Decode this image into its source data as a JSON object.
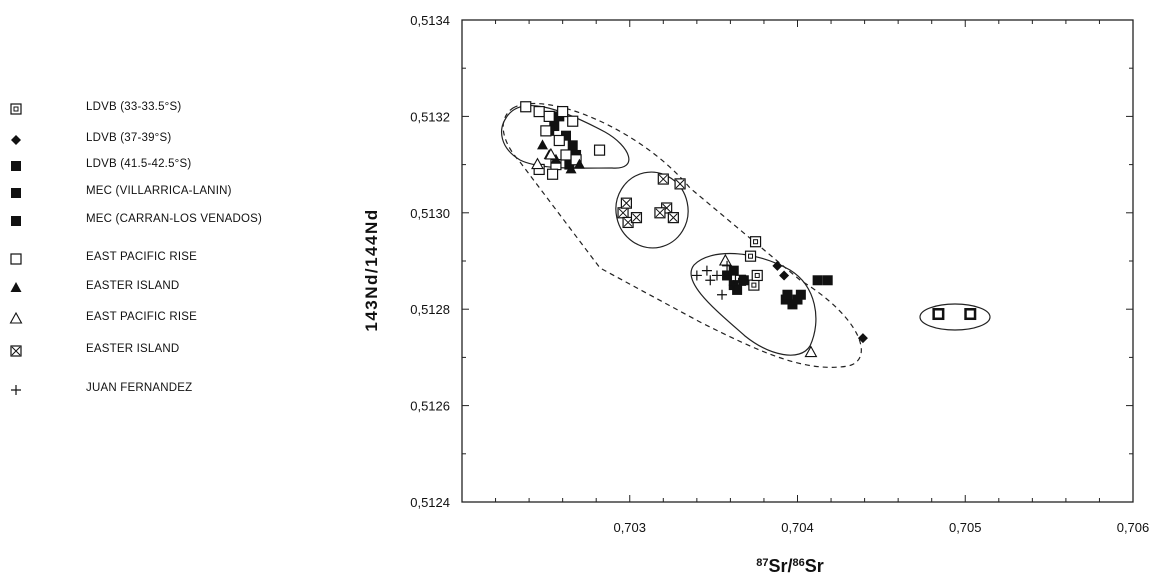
{
  "chart_data": {
    "type": "scatter",
    "title": "",
    "xlabel": "87Sr/86Sr",
    "ylabel": "143Nd/144Nd",
    "xlim": [
      0.702,
      0.706
    ],
    "ylim": [
      0.5124,
      0.5134
    ],
    "x_ticks": [
      {
        "value": 0.703,
        "label": "0,703"
      },
      {
        "value": 0.704,
        "label": "0,704"
      },
      {
        "value": 0.705,
        "label": "0,705"
      },
      {
        "value": 0.706,
        "label": "0,706"
      }
    ],
    "y_ticks": [
      {
        "value": 0.5124,
        "label": "0,5124"
      },
      {
        "value": 0.5126,
        "label": "0,5126"
      },
      {
        "value": 0.5128,
        "label": "0,5128"
      },
      {
        "value": 0.513,
        "label": "0,5130"
      },
      {
        "value": 0.5132,
        "label": "0,5132"
      },
      {
        "value": 0.5134,
        "label": "0,5134"
      }
    ],
    "grid": false,
    "legend_position": "left",
    "series": [
      {
        "name": "LDVB (33-33.5°S)",
        "marker": "boxed-square",
        "x": [
          0.70372,
          0.70375,
          0.70366,
          0.70374,
          0.70376
        ],
        "y": [
          0.51291,
          0.51294,
          0.51286,
          0.51285,
          0.51287
        ]
      },
      {
        "name": "LDVB (37-39°S)",
        "marker": "diamond",
        "x": [
          0.70388,
          0.70392,
          0.70439
        ],
        "y": [
          0.51289,
          0.51287,
          0.51274
        ]
      },
      {
        "name": "LDVB (41.5-42.5°S)",
        "marker": "filled-square",
        "x": [
          0.70393,
          0.70397,
          0.70402,
          0.70394,
          0.704
        ],
        "y": [
          0.51282,
          0.51281,
          0.51283,
          0.51283,
          0.51282
        ]
      },
      {
        "name": "MEC (VILLARRICA-LANIN)",
        "marker": "filled-square",
        "x": [
          0.70358,
          0.70362,
          0.70368,
          0.70362,
          0.70364,
          0.70412,
          0.70418
        ],
        "y": [
          0.51287,
          0.51285,
          0.51286,
          0.51288,
          0.51284,
          0.51286,
          0.51286
        ]
      },
      {
        "name": "MEC (CARRAN-LOS VENADOS)",
        "marker": "filled-square",
        "x": [
          0.70255,
          0.70262,
          0.70266,
          0.70258,
          0.70268,
          0.70252,
          0.70264
        ],
        "y": [
          0.51318,
          0.51316,
          0.51314,
          0.5132,
          0.51312,
          0.51317,
          0.5131
        ]
      },
      {
        "name": "EAST PACIFIC RISE",
        "marker": "open-square",
        "x": [
          0.70238,
          0.70246,
          0.70252,
          0.7026,
          0.70266,
          0.7025,
          0.70258,
          0.70262,
          0.70282,
          0.70256,
          0.70268,
          0.70246,
          0.70254
        ],
        "y": [
          0.51322,
          0.51321,
          0.5132,
          0.51321,
          0.51319,
          0.51317,
          0.51315,
          0.51312,
          0.51313,
          0.5131,
          0.51311,
          0.51309,
          0.51308
        ]
      },
      {
        "name": "EASTER ISLAND",
        "marker": "filled-triangle",
        "x": [
          0.70248,
          0.70256,
          0.70265,
          0.70252,
          0.7027
        ],
        "y": [
          0.51314,
          0.51311,
          0.51309,
          0.51312,
          0.5131
        ]
      },
      {
        "name": "EAST PACIFIC RISE",
        "marker": "open-triangle",
        "x": [
          0.70245,
          0.70253,
          0.70357,
          0.70408
        ],
        "y": [
          0.5131,
          0.51312,
          0.5129,
          0.51271
        ]
      },
      {
        "name": "EASTER ISLAND",
        "marker": "crossed-square",
        "x": [
          0.70296,
          0.70299,
          0.70304,
          0.70298,
          0.7032,
          0.7033,
          0.70322,
          0.70326,
          0.70318
        ],
        "y": [
          0.513,
          0.51298,
          0.51299,
          0.51302,
          0.51307,
          0.51306,
          0.51301,
          0.51299,
          0.513
        ]
      },
      {
        "name": "JUAN FERNANDEZ",
        "marker": "plus",
        "x": [
          0.7034,
          0.70346,
          0.70352,
          0.70358,
          0.70348,
          0.70355,
          0.70362
        ],
        "y": [
          0.51287,
          0.51288,
          0.51287,
          0.51289,
          0.51286,
          0.51283,
          0.51285
        ]
      },
      {
        "name": "",
        "marker": "boxed-filled-square",
        "x": [
          0.70484,
          0.70503
        ],
        "y": [
          0.51279,
          0.51279
        ]
      }
    ]
  }
}
